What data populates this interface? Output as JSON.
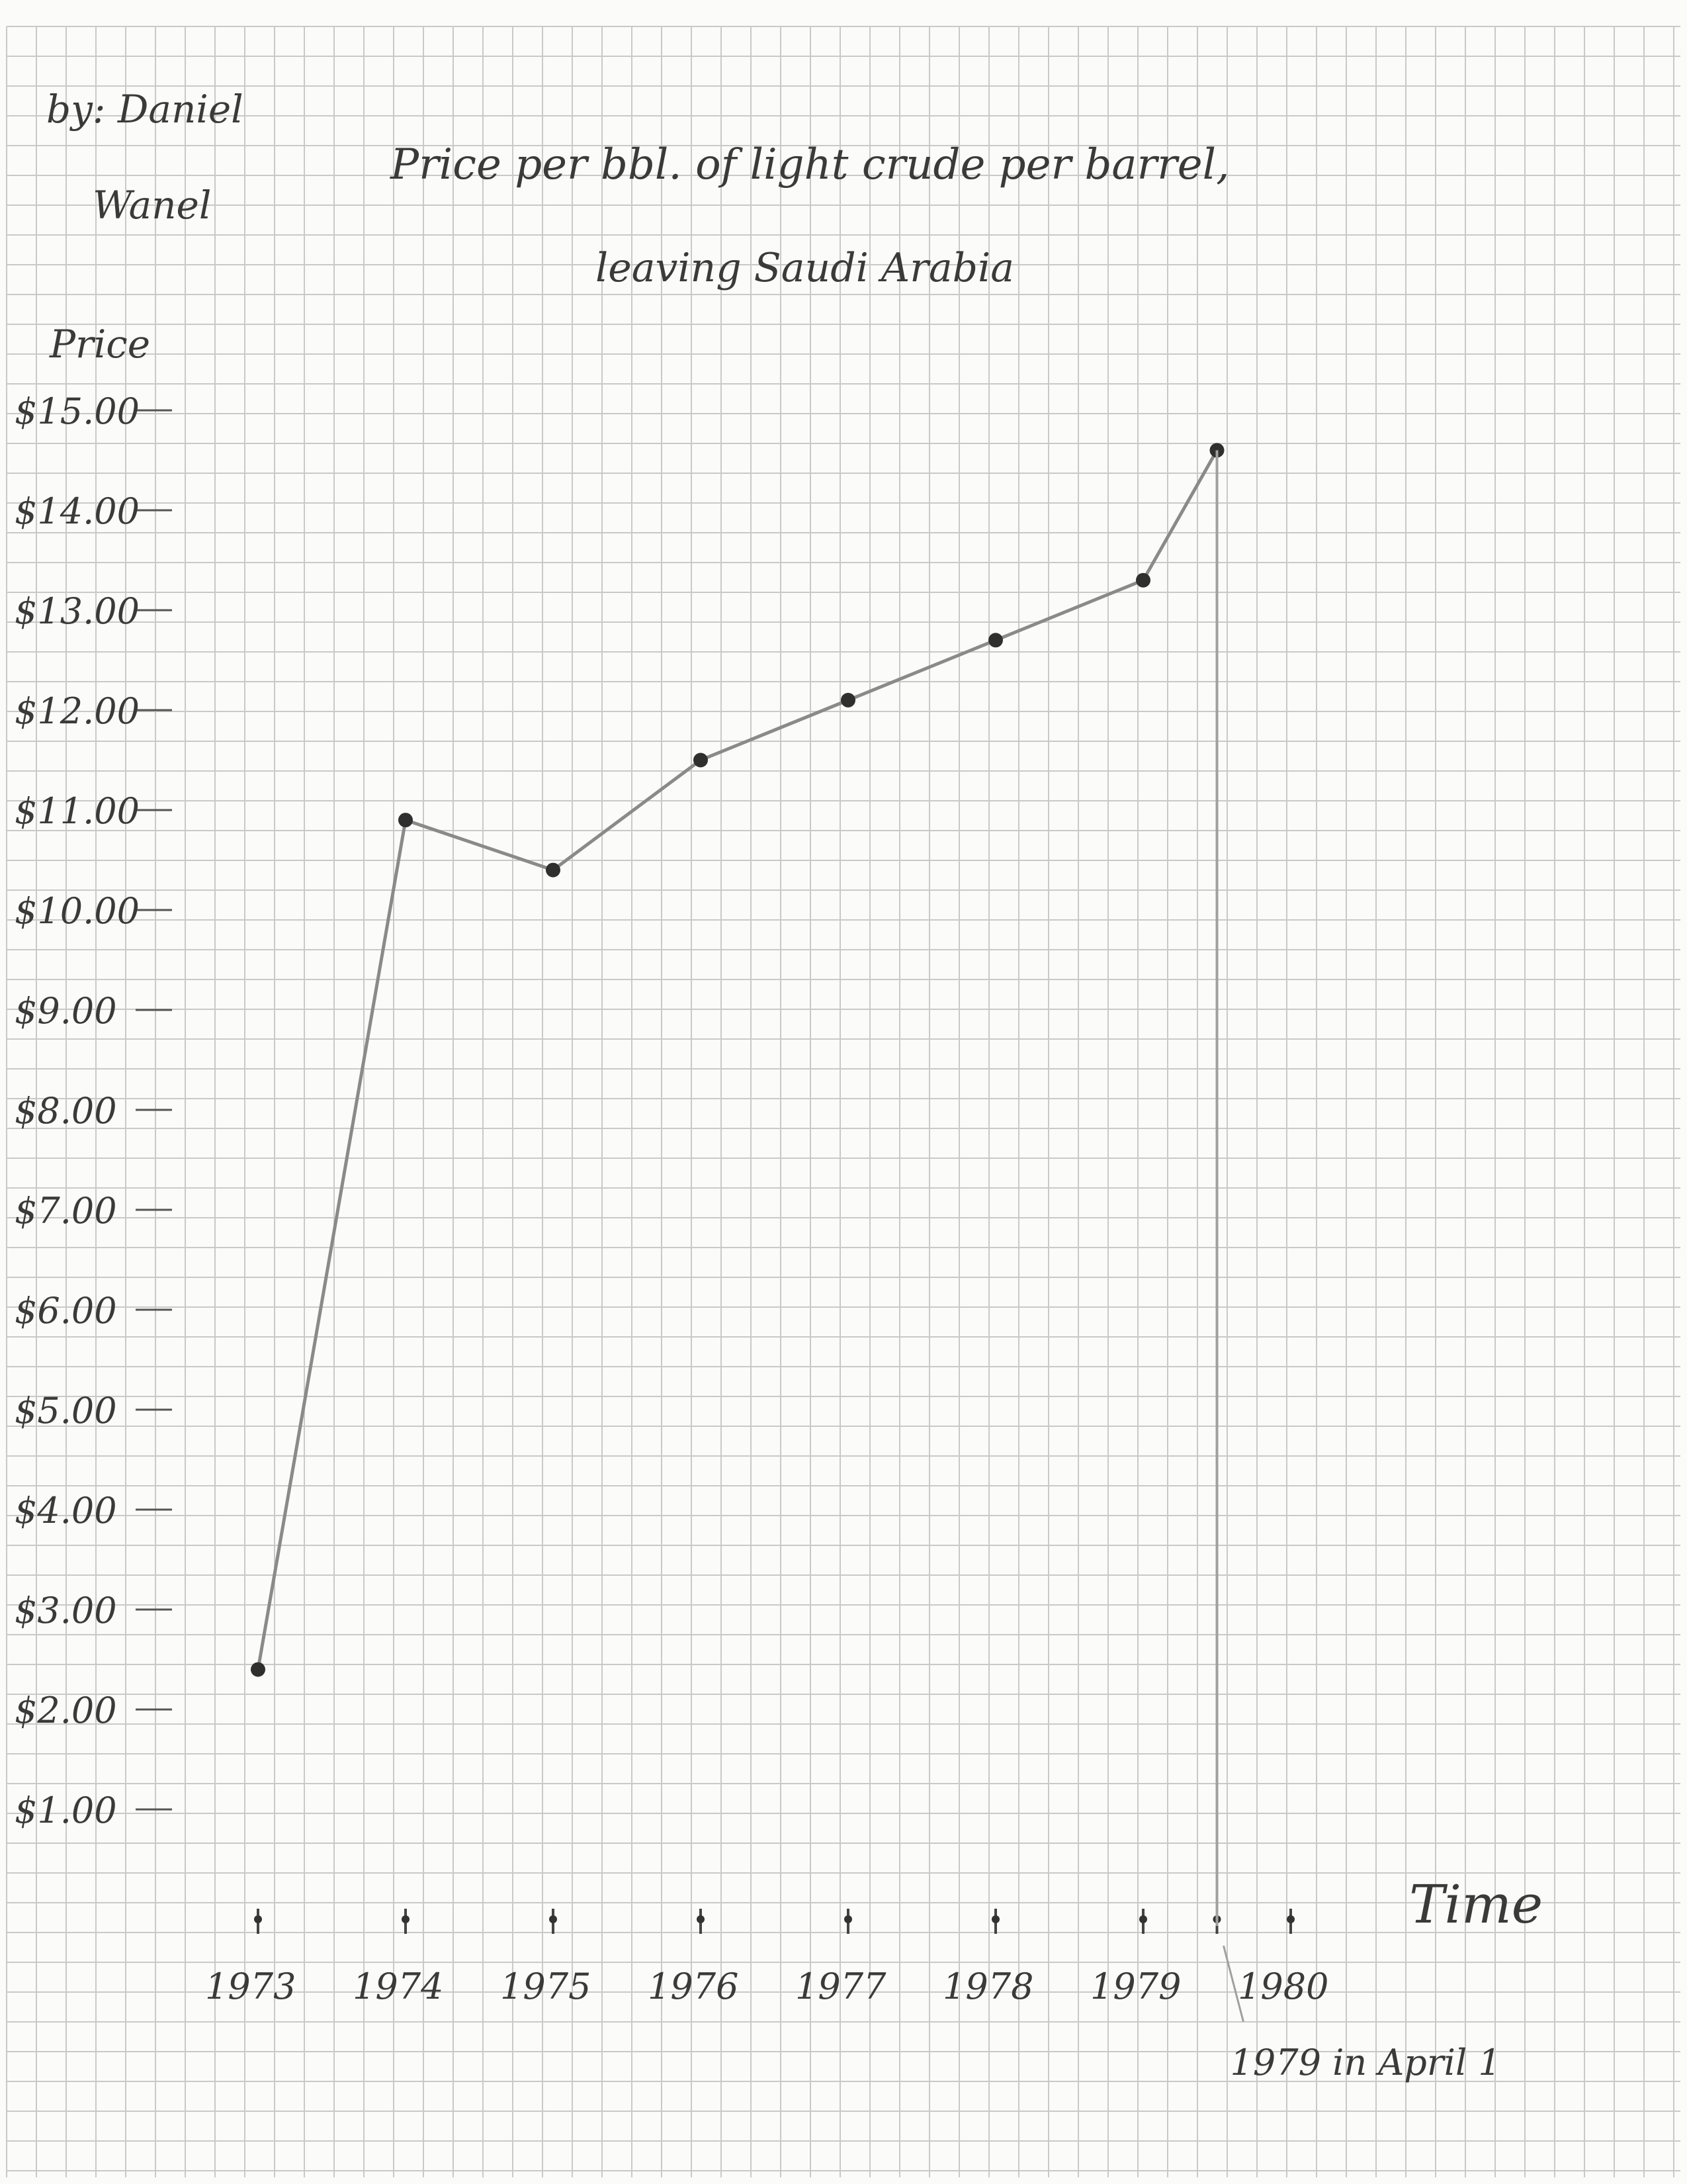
{
  "author": {
    "line1": "by: Daniel",
    "line2": "Wanel"
  },
  "chart_data": {
    "type": "line",
    "title": "Price per bbl. of light crude per barrel,",
    "subtitle": "leaving Saudi Arabia",
    "ylabel": "Price",
    "xlabel": "Time",
    "ylim": [
      0,
      15
    ],
    "y_ticks": [
      1,
      2,
      3,
      4,
      5,
      6,
      7,
      8,
      9,
      10,
      11,
      12,
      13,
      14,
      15
    ],
    "y_tick_labels": [
      "$1.00",
      "$2.00",
      "$3.00",
      "$4.00",
      "$5.00",
      "$6.00",
      "$7.00",
      "$8.00",
      "$9.00",
      "$10.00",
      "$11.00",
      "$12.00",
      "$13.00",
      "$14.00",
      "$15.00"
    ],
    "x_ticks": [
      1973,
      1974,
      1975,
      1976,
      1977,
      1978,
      1979,
      1979.5,
      1980
    ],
    "x_tick_labels": [
      "1973",
      "1974",
      "1975",
      "1976",
      "1977",
      "1978",
      "1979",
      "",
      "1980"
    ],
    "grid": true,
    "series": [
      {
        "x": [
          1973,
          1974,
          1975,
          1976,
          1977,
          1978,
          1979,
          1979.5
        ],
        "y": [
          2.4,
          10.9,
          10.4,
          11.5,
          12.1,
          12.7,
          13.3,
          14.6
        ]
      }
    ],
    "annotations": [
      {
        "text": "1979 in April 1",
        "x": 1979.5
      }
    ]
  }
}
